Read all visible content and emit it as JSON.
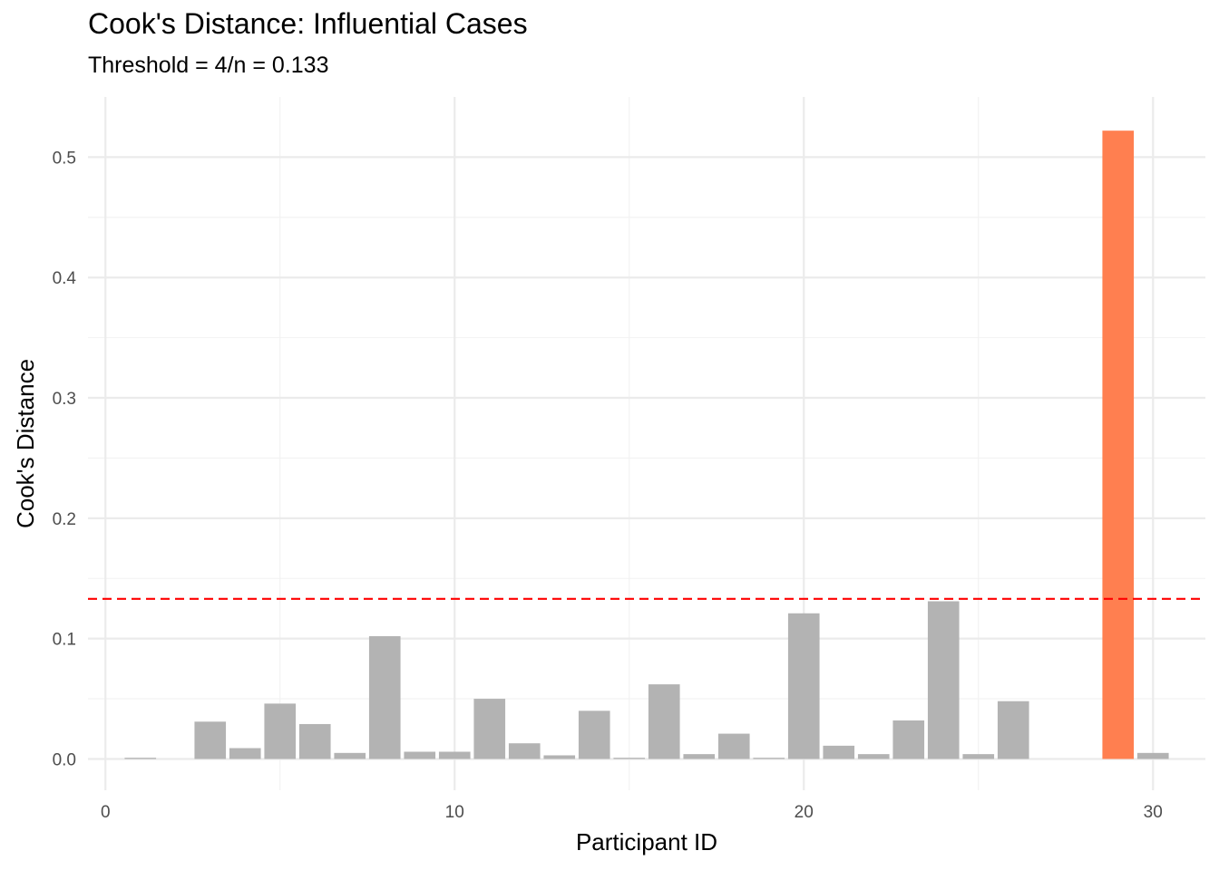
{
  "chart_data": {
    "type": "bar",
    "title": "Cook's Distance: Influential Cases",
    "subtitle": "Threshold = 4/n = 0.133",
    "xlabel": "Participant ID",
    "ylabel": "Cook's Distance",
    "xlim": [
      -0.5,
      31.5
    ],
    "ylim": [
      -0.026,
      0.55
    ],
    "x_ticks": [
      0,
      10,
      20,
      30
    ],
    "x_tick_labels": [
      "0",
      "10",
      "20",
      "30"
    ],
    "y_ticks": [
      0.0,
      0.1,
      0.2,
      0.3,
      0.4,
      0.5
    ],
    "y_tick_labels": [
      "0.0",
      "0.1",
      "0.2",
      "0.3",
      "0.4",
      "0.5"
    ],
    "threshold": 0.133,
    "grid": true,
    "x": [
      1,
      2,
      3,
      4,
      5,
      6,
      7,
      8,
      9,
      10,
      11,
      12,
      13,
      14,
      15,
      16,
      17,
      18,
      19,
      20,
      21,
      22,
      23,
      24,
      25,
      26,
      27,
      28,
      29,
      30
    ],
    "values": [
      0.001,
      0.0,
      0.031,
      0.009,
      0.046,
      0.029,
      0.005,
      0.102,
      0.006,
      0.006,
      0.05,
      0.013,
      0.003,
      0.04,
      0.001,
      0.062,
      0.004,
      0.021,
      0.001,
      0.121,
      0.011,
      0.004,
      0.032,
      0.131,
      0.004,
      0.048,
      0.0,
      0.0,
      0.522,
      0.005
    ],
    "colors": {
      "normal_bar": "#b3b3b3",
      "influential_bar": "#ff7f50",
      "threshold_line": "#ff0000",
      "grid_major": "#ebebeb",
      "grid_minor": "#f2f2f2"
    }
  }
}
